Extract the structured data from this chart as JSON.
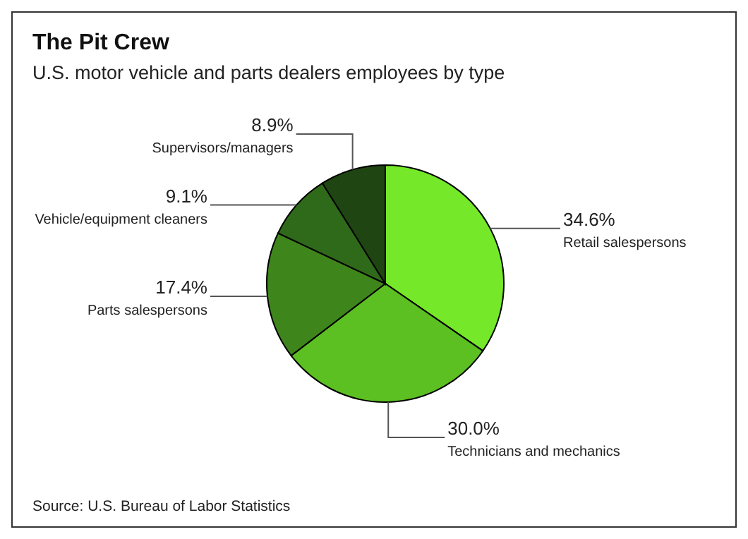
{
  "chart_data": {
    "type": "pie",
    "title": "The Pit Crew",
    "subtitle": "U.S. motor vehicle and parts dealers employees by type",
    "categories": [
      "Retail salespersons",
      "Technicians and mechanics",
      "Parts salespersons",
      "Vehicle/equipment cleaners",
      "Supervisors/managers"
    ],
    "values": [
      34.6,
      30.0,
      17.4,
      9.1,
      8.9
    ],
    "value_labels": [
      "34.6%",
      "30.0%",
      "17.4%",
      "9.1%",
      "8.9%"
    ],
    "colors": [
      "#75e82a",
      "#5cbf22",
      "#3e861c",
      "#2f6a1a",
      "#1f4512"
    ],
    "annotations": [
      "Source: U.S. Bureau of Labor Statistics"
    ]
  }
}
